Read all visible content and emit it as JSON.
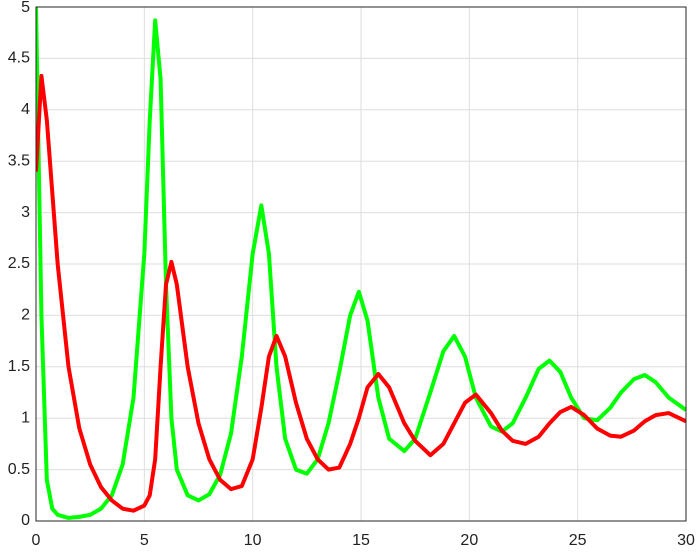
{
  "chart_data": {
    "type": "line",
    "x": [
      0,
      0.25,
      0.5,
      0.75,
      1,
      1.5,
      2,
      2.5,
      3,
      3.5,
      4,
      4.5,
      5,
      5.25,
      5.5,
      5.75,
      6,
      6.25,
      6.5,
      7,
      7.5,
      8,
      8.5,
      9,
      9.5,
      10,
      10.4,
      10.75,
      11.1,
      11.5,
      12,
      12.5,
      13,
      13.5,
      14,
      14.5,
      14.9,
      15.3,
      15.8,
      16.3,
      17,
      17.5,
      18.2,
      18.8,
      19.3,
      19.8,
      20.3,
      21,
      21.5,
      22,
      22.6,
      23.2,
      23.7,
      24.2,
      24.7,
      25.3,
      25.9,
      26.5,
      27,
      27.6,
      28.1,
      28.6,
      29.2,
      30
    ],
    "series": [
      {
        "color": "#00ff00",
        "values": [
          5,
          2.0,
          0.4,
          0.12,
          0.06,
          0.03,
          0.04,
          0.06,
          0.12,
          0.25,
          0.55,
          1.2,
          2.6,
          3.9,
          4.87,
          4.3,
          2.3,
          1.0,
          0.5,
          0.25,
          0.2,
          0.26,
          0.45,
          0.85,
          1.6,
          2.6,
          3.07,
          2.6,
          1.5,
          0.8,
          0.5,
          0.46,
          0.6,
          0.95,
          1.45,
          2.0,
          2.23,
          1.95,
          1.2,
          0.8,
          0.68,
          0.8,
          1.25,
          1.65,
          1.8,
          1.6,
          1.2,
          0.92,
          0.87,
          0.95,
          1.2,
          1.48,
          1.56,
          1.45,
          1.2,
          1.0,
          0.98,
          1.1,
          1.25,
          1.38,
          1.42,
          1.35,
          1.2,
          1.08
        ]
      },
      {
        "color": "#ff0000",
        "values": [
          3.4,
          4.33,
          3.9,
          3.2,
          2.5,
          1.5,
          0.9,
          0.55,
          0.33,
          0.2,
          0.12,
          0.1,
          0.15,
          0.25,
          0.6,
          1.5,
          2.3,
          2.52,
          2.3,
          1.5,
          0.95,
          0.6,
          0.4,
          0.31,
          0.34,
          0.6,
          1.1,
          1.6,
          1.8,
          1.6,
          1.15,
          0.8,
          0.6,
          0.5,
          0.52,
          0.75,
          1.0,
          1.3,
          1.43,
          1.3,
          0.95,
          0.78,
          0.64,
          0.75,
          0.95,
          1.15,
          1.23,
          1.05,
          0.88,
          0.78,
          0.75,
          0.82,
          0.95,
          1.06,
          1.11,
          1.03,
          0.9,
          0.83,
          0.82,
          0.88,
          0.97,
          1.03,
          1.05,
          0.97
        ]
      }
    ],
    "xlim": [
      0,
      30
    ],
    "xticks": [
      0,
      5,
      10,
      15,
      20,
      25,
      30
    ],
    "ylim": [
      0,
      5
    ],
    "yticks": [
      0,
      0.5,
      1,
      1.5,
      2,
      2.5,
      3,
      3.5,
      4,
      4.5,
      5
    ],
    "grid": true
  }
}
